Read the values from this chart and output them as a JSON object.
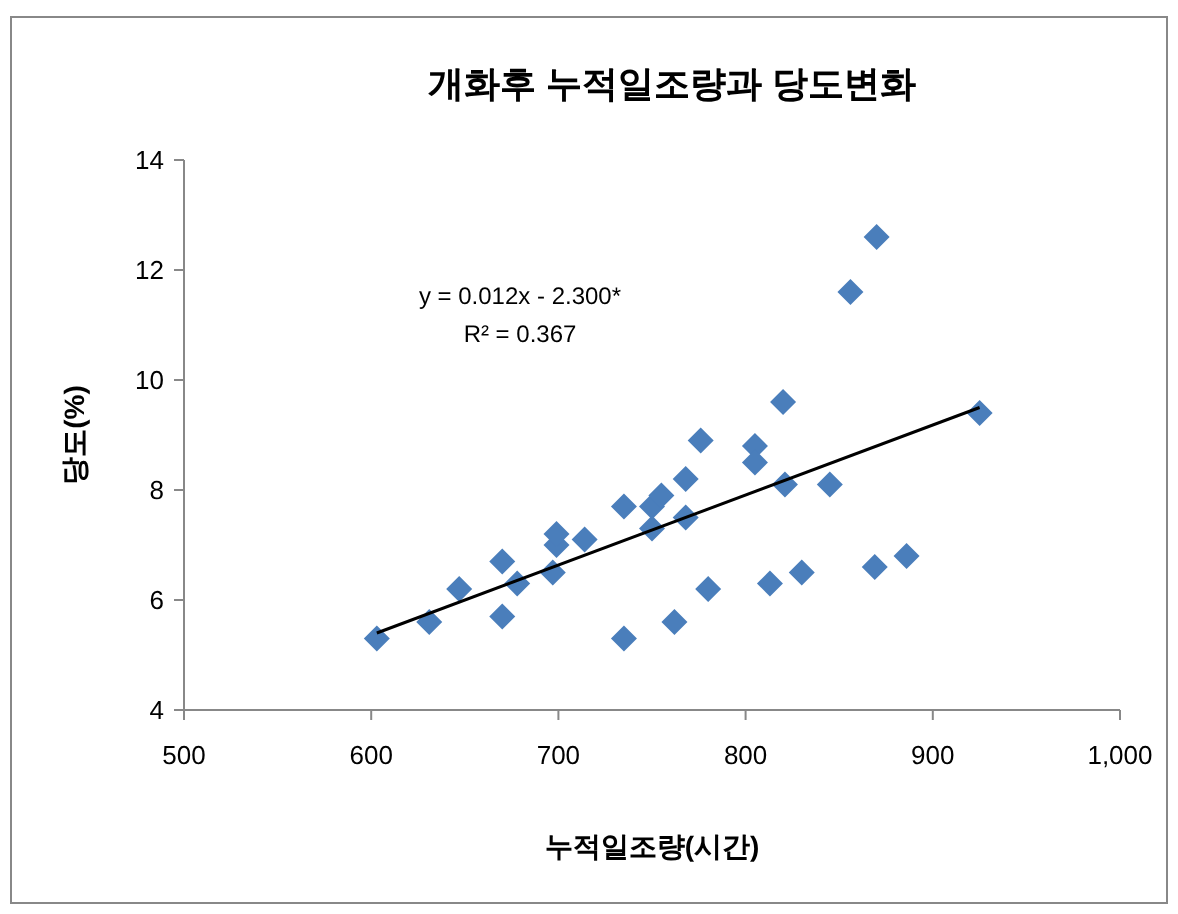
{
  "chart_data": {
    "type": "scatter",
    "title": "개화후 누적일조량과 당도변화",
    "xlabel": "누적일조량(시간)",
    "ylabel": "당도(%)",
    "xlim": [
      500,
      1000
    ],
    "xticks": [
      500,
      600,
      700,
      800,
      900,
      {
        "value": 1000,
        "label": "1,000"
      }
    ],
    "ylim": [
      4,
      14
    ],
    "yticks": [
      4,
      6,
      8,
      10,
      12,
      14
    ],
    "annotations": [
      "y = 0.012x - 2.300*",
      "R² = 0.367"
    ],
    "series": [
      {
        "type": "scatter",
        "color": "#4a7ebb",
        "marker": "diamond",
        "x": [
          603,
          631,
          647,
          670,
          670,
          678,
          697,
          699,
          699,
          714,
          735,
          735,
          750,
          750,
          755,
          762,
          768,
          768,
          776,
          780,
          805,
          805,
          813,
          820,
          821,
          830,
          845,
          856,
          869,
          870,
          886,
          925
        ],
        "values": [
          5.3,
          5.6,
          6.2,
          6.7,
          5.7,
          6.3,
          6.5,
          7.0,
          7.2,
          7.1,
          7.7,
          5.3,
          7.3,
          7.7,
          7.9,
          5.6,
          8.2,
          7.5,
          8.9,
          6.2,
          8.8,
          8.5,
          6.3,
          9.6,
          8.1,
          6.5,
          8.1,
          11.6,
          6.6,
          12.6,
          6.8,
          9.4
        ]
      },
      {
        "type": "line",
        "color": "#000000",
        "marker": "none",
        "line_style": "solid",
        "x": [
          603,
          925
        ],
        "values": [
          5.4,
          9.5
        ]
      }
    ]
  }
}
